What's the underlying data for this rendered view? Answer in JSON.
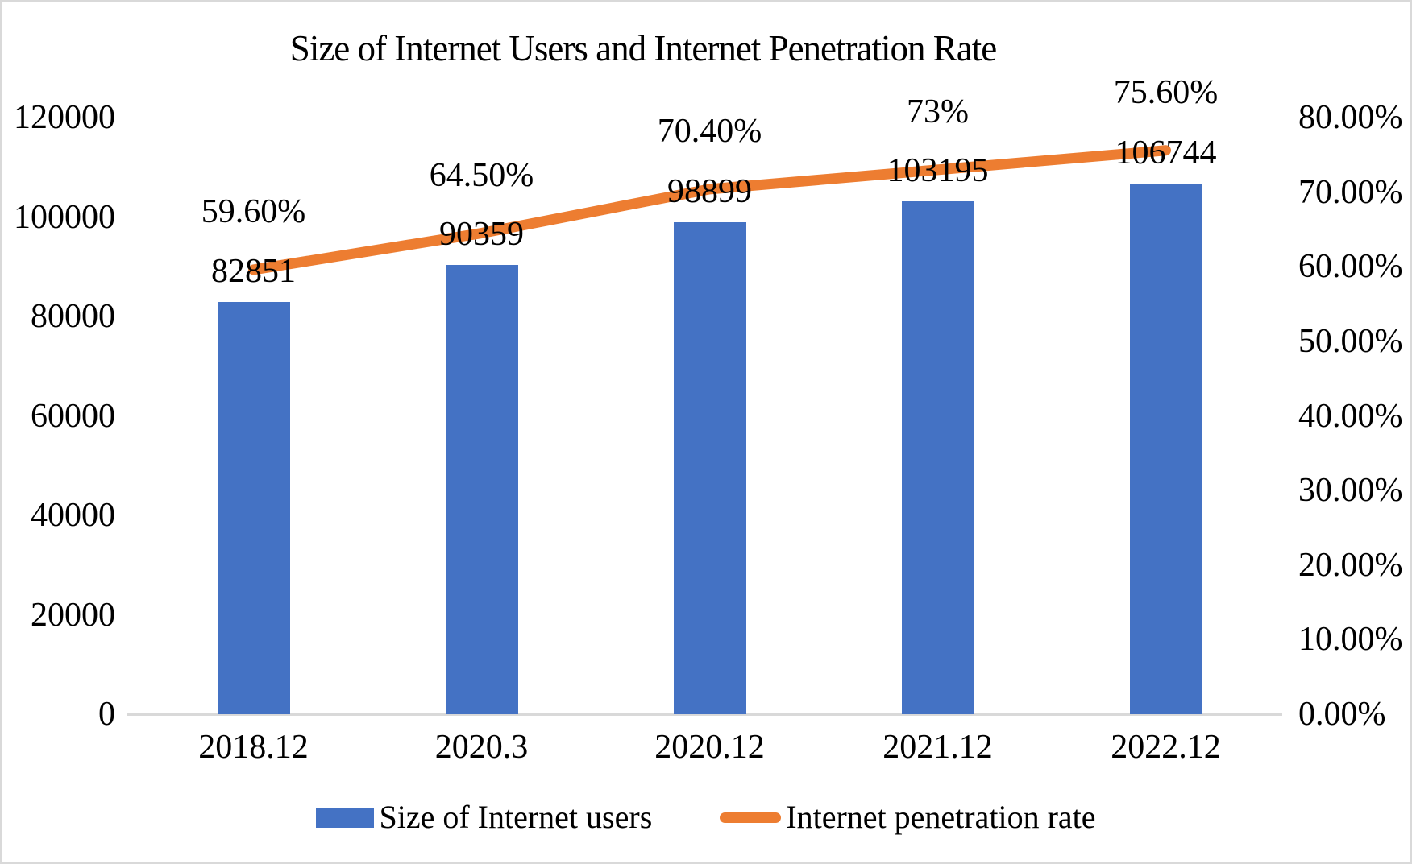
{
  "frame": {
    "background": "#FFFFFF",
    "border_color": "#D9D9D9",
    "axis_line_color": "#D9D9D9"
  },
  "chart_data": {
    "type": "combo",
    "title": "Size of Internet Users and Internet Penetration Rate",
    "categories": [
      "2018.12",
      "2020.3",
      "2020.12",
      "2021.12",
      "2022.12"
    ],
    "series": [
      {
        "name": "Size of Internet users",
        "type": "bar",
        "axis": "left",
        "color": "#4472C4",
        "values": [
          82851,
          90359,
          98899,
          103195,
          106744
        ],
        "labels": [
          "82851",
          "90359",
          "98899",
          "103195",
          "106744"
        ]
      },
      {
        "name": "Internet penetration rate",
        "type": "line",
        "axis": "right",
        "color": "#ED7D31",
        "values": [
          0.596,
          0.645,
          0.704,
          0.73,
          0.756
        ],
        "labels": [
          "59.60%",
          "64.50%",
          "70.40%",
          "73%",
          "75.60%"
        ]
      }
    ],
    "left_axis": {
      "min": 0,
      "max": 120000,
      "ticks": [
        "120000",
        "100000",
        "80000",
        "60000",
        "40000",
        "20000",
        "0"
      ]
    },
    "right_axis": {
      "min": 0,
      "max": 0.8,
      "ticks": [
        "80.00%",
        "70.00%",
        "60.00%",
        "50.00%",
        "40.00%",
        "30.00%",
        "20.00%",
        "10.00%",
        "0.00%"
      ]
    },
    "grid": "off",
    "legend_position": "bottom"
  }
}
